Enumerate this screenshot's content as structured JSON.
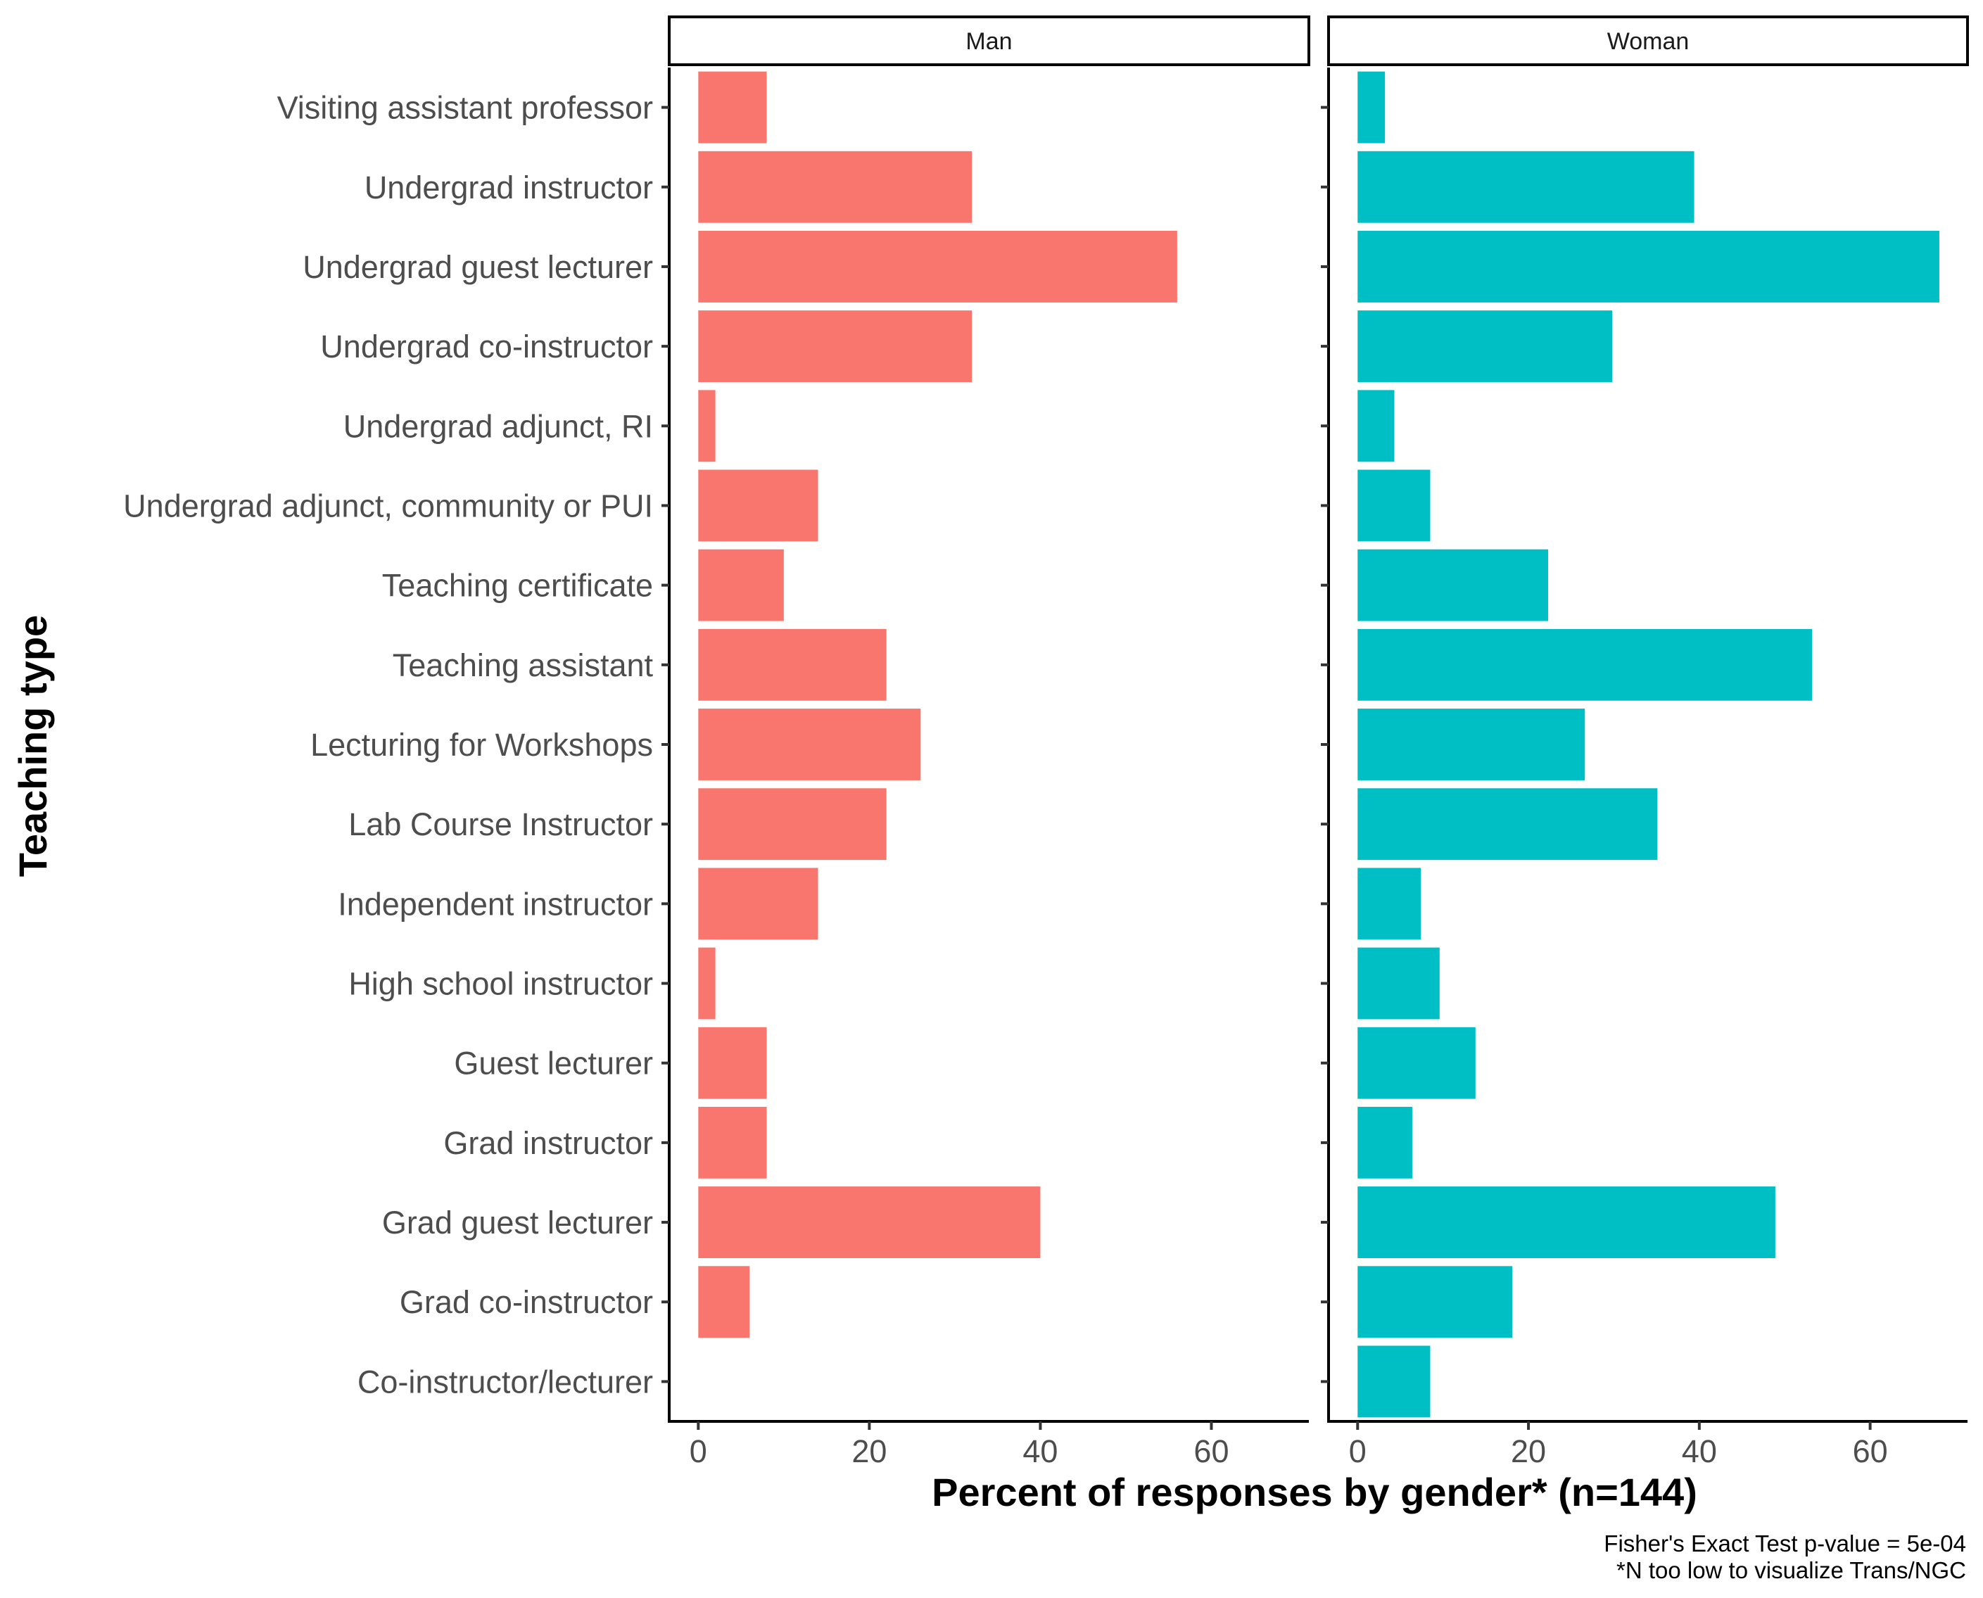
{
  "chart_data": {
    "type": "bar",
    "orientation": "horizontal",
    "ylabel": "Teaching type",
    "xlabel": "Percent of responses by gender* (n=144)",
    "caption": [
      "Fisher's Exact Test p-value =  5e-04",
      "*N too low to visualize Trans/NGC"
    ],
    "categories": [
      "Visiting assistant professor",
      "Undergrad instructor",
      "Undergrad guest lecturer",
      "Undergrad co-instructor",
      "Undergrad adjunct, RI",
      "Undergrad adjunct, community or PUI",
      "Teaching certificate",
      "Teaching assistant",
      "Lecturing for Workshops",
      "Lab Course Instructor",
      "Independent instructor",
      "High school instructor",
      "Guest lecturer",
      "Grad instructor",
      "Grad guest lecturer",
      "Grad co-instructor",
      "Co-instructor/lecturer"
    ],
    "xlim": [
      -3.4,
      71.4
    ],
    "xticks": [
      0,
      20,
      40,
      60
    ],
    "legend": "none",
    "grid": false,
    "panels": [
      {
        "name": "Man",
        "color": "#F8766D",
        "values": [
          8,
          32,
          56,
          32,
          2,
          14,
          10,
          22,
          26,
          22,
          14,
          2,
          8,
          8,
          40,
          6,
          0
        ]
      },
      {
        "name": "Woman",
        "color": "#00BFC4",
        "values": [
          3.2,
          39.4,
          68.1,
          29.8,
          4.3,
          8.5,
          22.3,
          53.2,
          26.6,
          35.1,
          7.4,
          9.6,
          13.8,
          6.4,
          48.9,
          18.1,
          8.5
        ]
      }
    ]
  }
}
